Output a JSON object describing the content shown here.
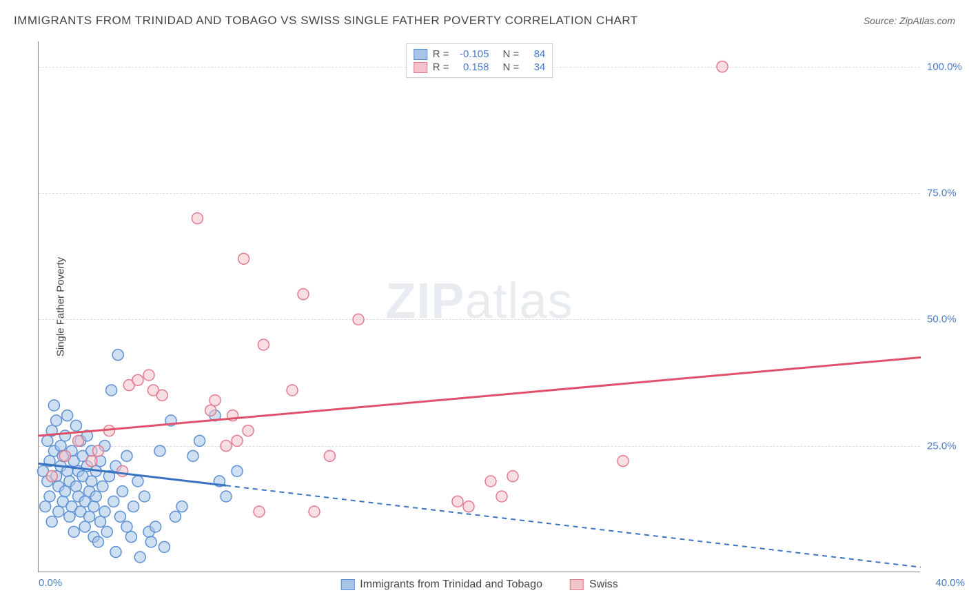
{
  "title": "IMMIGRANTS FROM TRINIDAD AND TOBAGO VS SWISS SINGLE FATHER POVERTY CORRELATION CHART",
  "source_label": "Source: ",
  "source_name": "ZipAtlas.com",
  "y_axis_title": "Single Father Poverty",
  "watermark_a": "ZIP",
  "watermark_b": "atlas",
  "chart": {
    "type": "scatter",
    "xlim": [
      0,
      40
    ],
    "ylim": [
      0,
      105
    ],
    "x_origin_label": "0.0%",
    "x_max_label": "40.0%",
    "y_ticks": [
      {
        "v": 25,
        "label": "25.0%"
      },
      {
        "v": 50,
        "label": "50.0%"
      },
      {
        "v": 75,
        "label": "75.0%"
      },
      {
        "v": 100,
        "label": "100.0%"
      }
    ],
    "grid_color": "#dddddd",
    "background_color": "#ffffff",
    "series": [
      {
        "name": "Immigrants from Trinidad and Tobago",
        "color_fill": "#a8c5e8",
        "color_stroke": "#5a8fd4",
        "line_color": "#3a72c2",
        "r_value": "-0.105",
        "n_value": "84",
        "marker_radius": 8,
        "trend": {
          "x1": 0,
          "y1": 21.5,
          "x2": 40,
          "y2": 1.0,
          "solid_until_x": 8.5
        },
        "points": [
          [
            0.2,
            20
          ],
          [
            0.3,
            13
          ],
          [
            0.4,
            26
          ],
          [
            0.4,
            18
          ],
          [
            0.5,
            22
          ],
          [
            0.5,
            15
          ],
          [
            0.6,
            28
          ],
          [
            0.6,
            10
          ],
          [
            0.7,
            33
          ],
          [
            0.7,
            24
          ],
          [
            0.8,
            19
          ],
          [
            0.8,
            30
          ],
          [
            0.9,
            17
          ],
          [
            0.9,
            12
          ],
          [
            1.0,
            21
          ],
          [
            1.0,
            25
          ],
          [
            1.1,
            14
          ],
          [
            1.1,
            23
          ],
          [
            1.2,
            27
          ],
          [
            1.2,
            16
          ],
          [
            1.3,
            20
          ],
          [
            1.3,
            31
          ],
          [
            1.4,
            11
          ],
          [
            1.4,
            18
          ],
          [
            1.5,
            24
          ],
          [
            1.5,
            13
          ],
          [
            1.6,
            22
          ],
          [
            1.6,
            8
          ],
          [
            1.7,
            29
          ],
          [
            1.7,
            17
          ],
          [
            1.8,
            15
          ],
          [
            1.8,
            20
          ],
          [
            1.9,
            26
          ],
          [
            1.9,
            12
          ],
          [
            2.0,
            19
          ],
          [
            2.0,
            23
          ],
          [
            2.1,
            14
          ],
          [
            2.1,
            9
          ],
          [
            2.2,
            21
          ],
          [
            2.2,
            27
          ],
          [
            2.3,
            16
          ],
          [
            2.3,
            11
          ],
          [
            2.4,
            24
          ],
          [
            2.4,
            18
          ],
          [
            2.5,
            13
          ],
          [
            2.5,
            7
          ],
          [
            2.6,
            20
          ],
          [
            2.6,
            15
          ],
          [
            2.7,
            6
          ],
          [
            2.8,
            22
          ],
          [
            2.8,
            10
          ],
          [
            2.9,
            17
          ],
          [
            3.0,
            25
          ],
          [
            3.0,
            12
          ],
          [
            3.1,
            8
          ],
          [
            3.2,
            19
          ],
          [
            3.3,
            36
          ],
          [
            3.4,
            14
          ],
          [
            3.5,
            4
          ],
          [
            3.5,
            21
          ],
          [
            3.6,
            43
          ],
          [
            3.7,
            11
          ],
          [
            3.8,
            16
          ],
          [
            4.0,
            23
          ],
          [
            4.0,
            9
          ],
          [
            4.2,
            7
          ],
          [
            4.3,
            13
          ],
          [
            4.5,
            18
          ],
          [
            4.6,
            3
          ],
          [
            4.8,
            15
          ],
          [
            5.0,
            8
          ],
          [
            5.1,
            6
          ],
          [
            5.3,
            9
          ],
          [
            5.5,
            24
          ],
          [
            5.7,
            5
          ],
          [
            6.0,
            30
          ],
          [
            6.2,
            11
          ],
          [
            6.5,
            13
          ],
          [
            7.0,
            23
          ],
          [
            7.3,
            26
          ],
          [
            8.0,
            31
          ],
          [
            8.2,
            18
          ],
          [
            8.5,
            15
          ],
          [
            9.0,
            20
          ]
        ]
      },
      {
        "name": "Swiss",
        "color_fill": "#f4c2cb",
        "color_stroke": "#e27a8e",
        "line_color": "#e04f6b",
        "r_value": "0.158",
        "n_value": "34",
        "marker_radius": 8,
        "trend": {
          "x1": 0,
          "y1": 27.0,
          "x2": 40,
          "y2": 42.5,
          "solid_until_x": 40
        },
        "points": [
          [
            0.6,
            19
          ],
          [
            1.2,
            23
          ],
          [
            1.8,
            26
          ],
          [
            2.4,
            22
          ],
          [
            2.7,
            24
          ],
          [
            3.2,
            28
          ],
          [
            3.8,
            20
          ],
          [
            4.1,
            37
          ],
          [
            4.5,
            38
          ],
          [
            5.0,
            39
          ],
          [
            5.2,
            36
          ],
          [
            5.6,
            35
          ],
          [
            7.2,
            70
          ],
          [
            7.8,
            32
          ],
          [
            8.0,
            34
          ],
          [
            8.5,
            25
          ],
          [
            8.8,
            31
          ],
          [
            9.0,
            26
          ],
          [
            9.3,
            62
          ],
          [
            9.5,
            28
          ],
          [
            10.0,
            12
          ],
          [
            10.2,
            45
          ],
          [
            11.5,
            36
          ],
          [
            12.0,
            55
          ],
          [
            12.5,
            12
          ],
          [
            13.2,
            23
          ],
          [
            14.5,
            50
          ],
          [
            19.0,
            14
          ],
          [
            19.5,
            13
          ],
          [
            20.5,
            18
          ],
          [
            21.0,
            15
          ],
          [
            21.5,
            19
          ],
          [
            26.5,
            22
          ],
          [
            31.0,
            100
          ]
        ]
      }
    ],
    "legend_bottom": [
      {
        "swatch_fill": "#a8c5e8",
        "swatch_stroke": "#5a8fd4",
        "label": "Immigrants from Trinidad and Tobago"
      },
      {
        "swatch_fill": "#f4c2cb",
        "swatch_stroke": "#e27a8e",
        "label": "Swiss"
      }
    ],
    "legend_top_labels": {
      "r": "R =",
      "n": "N ="
    }
  }
}
